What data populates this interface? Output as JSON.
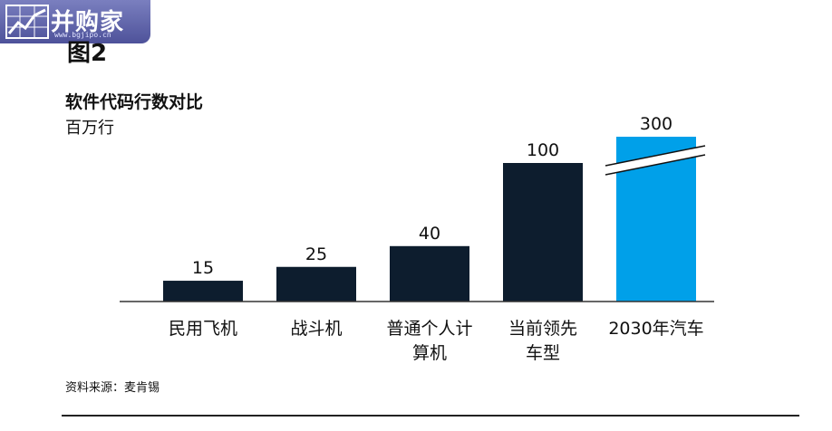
{
  "watermark": {
    "brand": "并购家",
    "site": "www.bgjipo.cn"
  },
  "figure_label": "图2",
  "source_note": "资料来源：麦肯锡",
  "colors": {
    "dark_bar": "#0d1d2e",
    "highlight_bar": "#00a0e9",
    "axis": "#333333"
  },
  "chart_data": {
    "type": "bar",
    "title": "软件代码行数对比",
    "unit": "百万行",
    "categories": [
      [
        "民用飞机"
      ],
      [
        "战斗机"
      ],
      [
        "普通个人计",
        "算机"
      ],
      [
        "当前领先",
        "车型"
      ],
      [
        "2030年汽车"
      ]
    ],
    "values": [
      15,
      25,
      40,
      100,
      300
    ],
    "axis_break": true,
    "highlight_index": 4
  }
}
